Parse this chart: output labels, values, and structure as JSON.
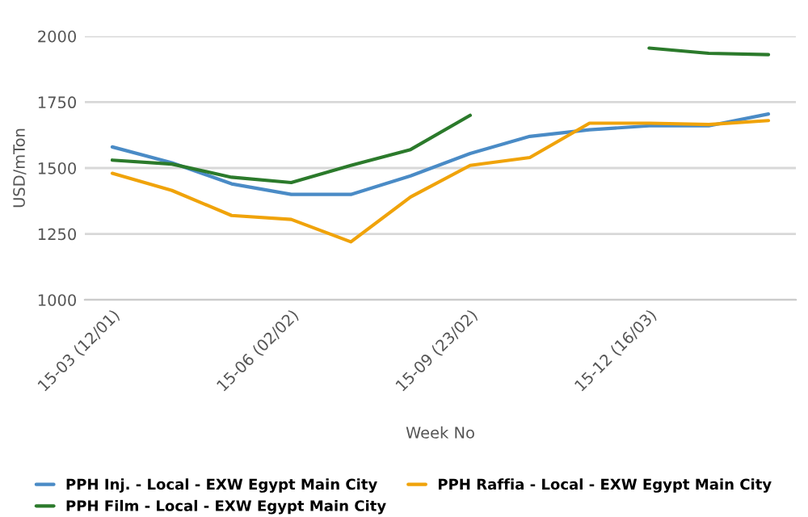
{
  "chart_data": {
    "type": "line",
    "xlabel": "Week No",
    "ylabel": "USD/mTon",
    "categories": [
      "15-03 (12/01)",
      null,
      null,
      "15-06 (02/02)",
      null,
      null,
      "15-09 (23/02)",
      null,
      null,
      "15-12 (16/03)",
      null,
      null
    ],
    "series": [
      {
        "name": "PPH Inj. - Local - EXW Egypt Main City",
        "color": "#4a8bc6",
        "values": [
          1580,
          1520,
          1440,
          1400,
          1400,
          1470,
          1555,
          1620,
          1645,
          1660,
          1660,
          1705
        ]
      },
      {
        "name": "PPH Raffia - Local - EXW Egypt Main City",
        "color": "#f0a30a",
        "values": [
          1480,
          1415,
          1320,
          1305,
          1220,
          1390,
          1510,
          1540,
          1670,
          1670,
          1665,
          1680
        ]
      },
      {
        "name": "PPH Film - Local - EXW Egypt Main City",
        "color": "#2b7a2b",
        "values": [
          1530,
          1515,
          1465,
          1445,
          1510,
          1570,
          1700,
          null,
          null,
          1955,
          1935,
          1930
        ]
      }
    ],
    "ylim": [
      1000,
      2000
    ],
    "yticks": [
      1000,
      1250,
      1500,
      1750,
      2000
    ],
    "grid": "y",
    "legend": "bottom",
    "marker": "none",
    "line_style": "solid"
  }
}
